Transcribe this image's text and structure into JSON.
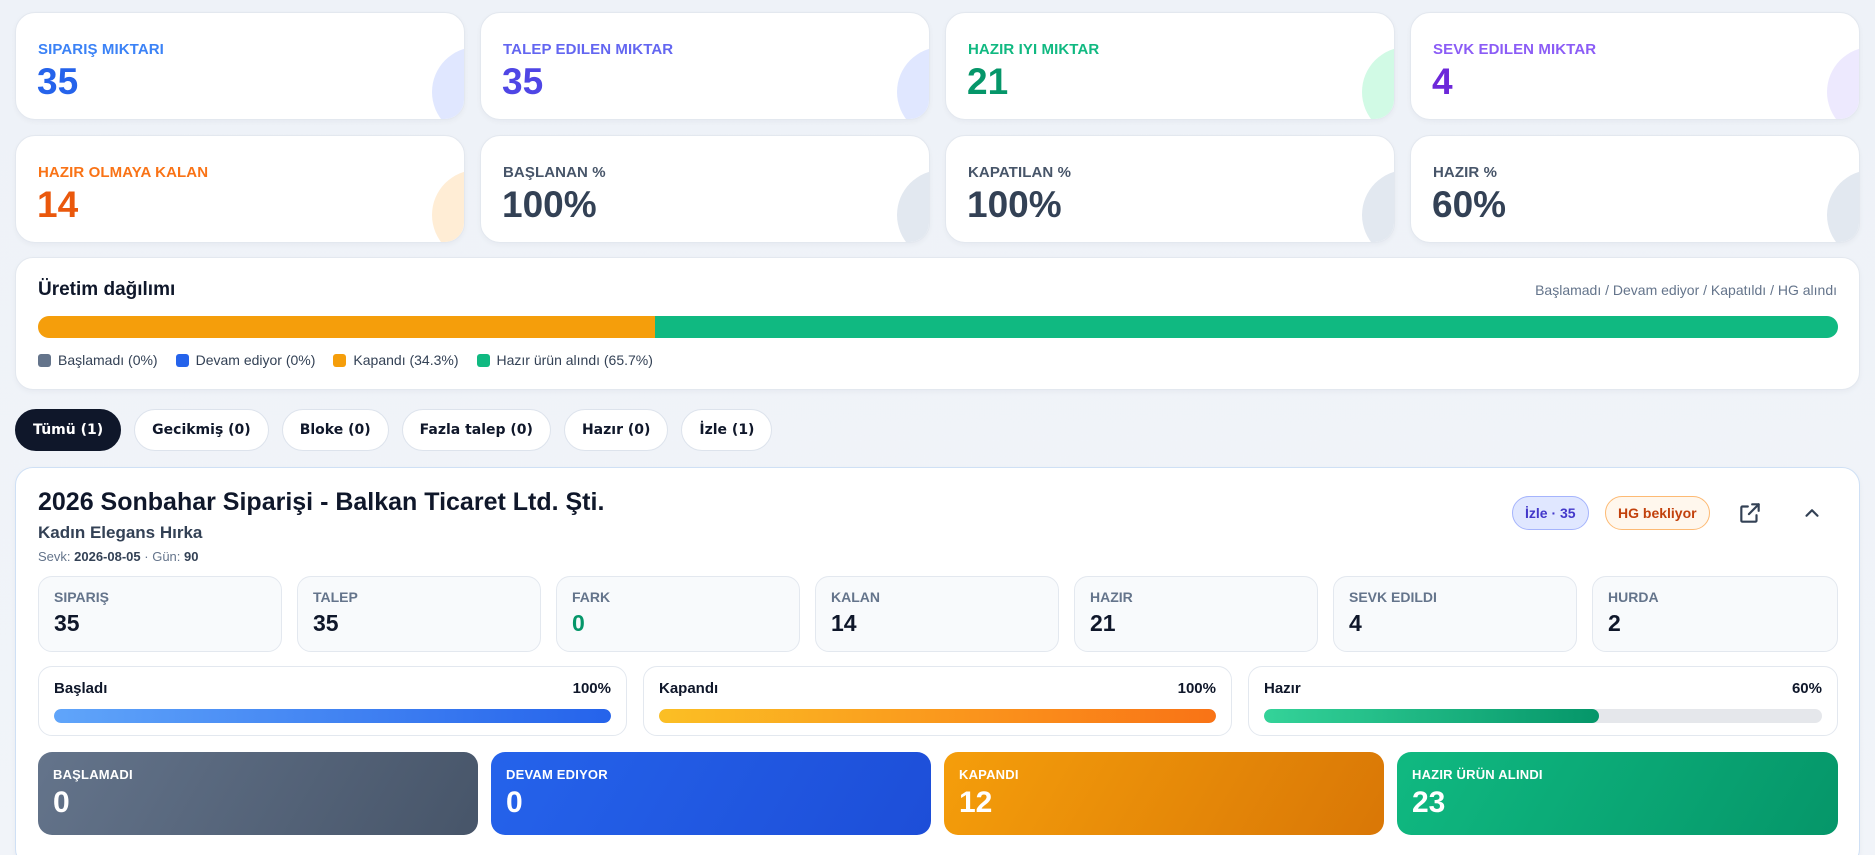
{
  "stats": [
    {
      "label": "SIPARIŞ MIKTARI",
      "value": "35",
      "label_color": "#3b82f6",
      "value_color": "#2563eb",
      "deco_color": "#e0e7ff"
    },
    {
      "label": "TALEP EDILEN MIKTAR",
      "value": "35",
      "label_color": "#6366f1",
      "value_color": "#4f46e5",
      "deco_color": "#e0e7ff"
    },
    {
      "label": "HAZIR IYI MIKTAR",
      "value": "21",
      "label_color": "#10b981",
      "value_color": "#059669",
      "deco_color": "#d1fae5"
    },
    {
      "label": "SEVK EDILEN MIKTAR",
      "value": "4",
      "label_color": "#8b5cf6",
      "value_color": "#6d28d9",
      "deco_color": "#ede9fe"
    },
    {
      "label": "HAZIR OLMAYA KALAN",
      "value": "14",
      "label_color": "#f97316",
      "value_color": "#ea580c",
      "deco_color": "#ffedd5"
    },
    {
      "label": "BAŞLANAN %",
      "value": "100%",
      "label_color": "#475569",
      "value_color": "#334155",
      "deco_color": "#e2e8f0"
    },
    {
      "label": "KAPATILAN %",
      "value": "100%",
      "label_color": "#475569",
      "value_color": "#334155",
      "deco_color": "#e2e8f0"
    },
    {
      "label": "HAZIR %",
      "value": "60%",
      "label_color": "#475569",
      "value_color": "#334155",
      "deco_color": "#e2e8f0"
    }
  ],
  "distribution": {
    "title": "Üretim dağılımı",
    "subtitle": "Başlamadı / Devam ediyor / Kapatıldı / HG alındı",
    "segments": [
      {
        "label": "Başlamadı (0%)",
        "value": 0,
        "color": "#64748b"
      },
      {
        "label": "Devam ediyor (0%)",
        "value": 0,
        "color": "#2563eb"
      },
      {
        "label": "Kapandı (34.3%)",
        "value": 34.3,
        "color": "#f59e0b"
      },
      {
        "label": "Hazır ürün alındı (65.7%)",
        "value": 65.7,
        "color": "#10b981"
      }
    ]
  },
  "filters": [
    {
      "label": "Tümü (1)",
      "active": true
    },
    {
      "label": "Gecikmiş (0)",
      "active": false
    },
    {
      "label": "Bloke (0)",
      "active": false
    },
    {
      "label": "Fazla talep (0)",
      "active": false
    },
    {
      "label": "Hazır (0)",
      "active": false
    },
    {
      "label": "İzle (1)",
      "active": false
    }
  ],
  "order": {
    "title": "2026 Sonbahar Siparişi - Balkan Ticaret Ltd. Şti.",
    "product": "Kadın Elegans Hırka",
    "ship_label": "Sevk:",
    "ship_date": "2026-08-05",
    "days_label": "· Gün:",
    "days": "90",
    "badge_watch": "İzle · 35",
    "badge_status": "HG bekliyor",
    "external_icon": "external-link-icon",
    "collapse_icon": "chevron-up-icon",
    "metrics": [
      {
        "label": "SIPARIŞ",
        "value": "35",
        "color": "#0f172a"
      },
      {
        "label": "TALEP",
        "value": "35",
        "color": "#0f172a"
      },
      {
        "label": "FARK",
        "value": "0",
        "color": "#059669"
      },
      {
        "label": "KALAN",
        "value": "14",
        "color": "#0f172a"
      },
      {
        "label": "HAZIR",
        "value": "21",
        "color": "#0f172a"
      },
      {
        "label": "SEVK EDILDI",
        "value": "4",
        "color": "#0f172a"
      },
      {
        "label": "HURDA",
        "value": "2",
        "color": "#0f172a"
      }
    ],
    "progress": [
      {
        "label": "Başladı",
        "pct_text": "100%",
        "fraction": 1.0,
        "gradient": "linear-gradient(90deg,#60a5fa,#2563eb)"
      },
      {
        "label": "Kapandı",
        "pct_text": "100%",
        "fraction": 1.0,
        "gradient": "linear-gradient(90deg,#fbbf24,#f97316)"
      },
      {
        "label": "Hazır",
        "pct_text": "60%",
        "fraction": 0.6,
        "gradient": "linear-gradient(90deg,#34d399,#059669)"
      }
    ],
    "states": [
      {
        "label": "BAŞLAMADI",
        "value": "0",
        "gradient": "linear-gradient(120deg,#64748b,#475569)"
      },
      {
        "label": "DEVAM EDIYOR",
        "value": "0",
        "gradient": "linear-gradient(120deg,#2563eb,#1d4ed8)"
      },
      {
        "label": "KAPANDI",
        "value": "12",
        "gradient": "linear-gradient(120deg,#f59e0b,#d97706)"
      },
      {
        "label": "HAZIR ÜRÜN ALINDI",
        "value": "23",
        "gradient": "linear-gradient(120deg,#10b981,#059669)"
      }
    ]
  }
}
